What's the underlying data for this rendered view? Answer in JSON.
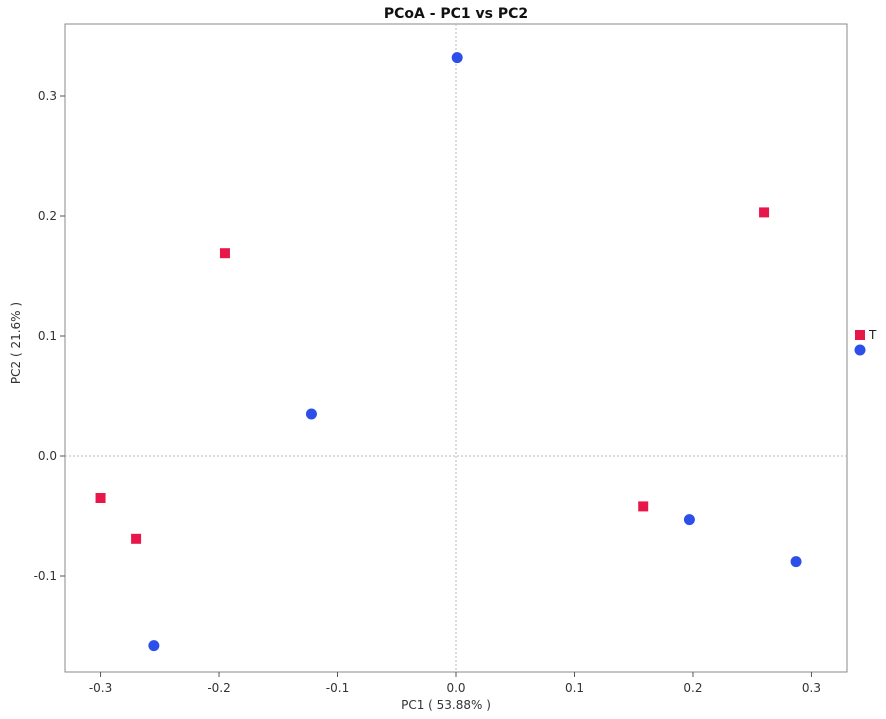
{
  "chart_data": {
    "type": "scatter",
    "title": "PCoA - PC1 vs PC2",
    "xlabel": "PC1 ( 53.88% )",
    "ylabel": "PC2 ( 21.6% )",
    "xlim": [
      -0.33,
      0.33
    ],
    "ylim": [
      -0.18,
      0.36
    ],
    "x_ticks": [
      -0.3,
      -0.2,
      -0.1,
      0.0,
      0.1,
      0.2,
      0.3
    ],
    "x_tick_labels": [
      "-0.3",
      "-0.2",
      "-0.1",
      "0.0",
      "0.1",
      "0.2",
      "0.3"
    ],
    "y_ticks": [
      -0.1,
      0.0,
      0.1,
      0.2,
      0.3
    ],
    "y_tick_labels": [
      "-0.1",
      "0.0",
      "0.1",
      "0.2",
      "0.3"
    ],
    "zero_lines": true,
    "grid": false,
    "legend_position": "right",
    "series": [
      {
        "name": "T",
        "marker": "square",
        "color": "#e8174a",
        "points": [
          {
            "x": -0.3,
            "y": -0.035
          },
          {
            "x": -0.27,
            "y": -0.069
          },
          {
            "x": -0.195,
            "y": 0.169
          },
          {
            "x": 0.158,
            "y": -0.042
          },
          {
            "x": 0.26,
            "y": 0.203
          }
        ]
      },
      {
        "name": "",
        "marker": "circle",
        "color": "#2b4fe8",
        "points": [
          {
            "x": -0.255,
            "y": -0.158
          },
          {
            "x": -0.122,
            "y": 0.035
          },
          {
            "x": 0.001,
            "y": 0.332
          },
          {
            "x": 0.197,
            "y": -0.053
          },
          {
            "x": 0.287,
            "y": -0.088
          }
        ]
      }
    ],
    "legend": [
      {
        "label": "T",
        "marker": "square",
        "color": "#e8174a"
      },
      {
        "label": "",
        "marker": "circle",
        "color": "#2b4fe8"
      }
    ]
  }
}
